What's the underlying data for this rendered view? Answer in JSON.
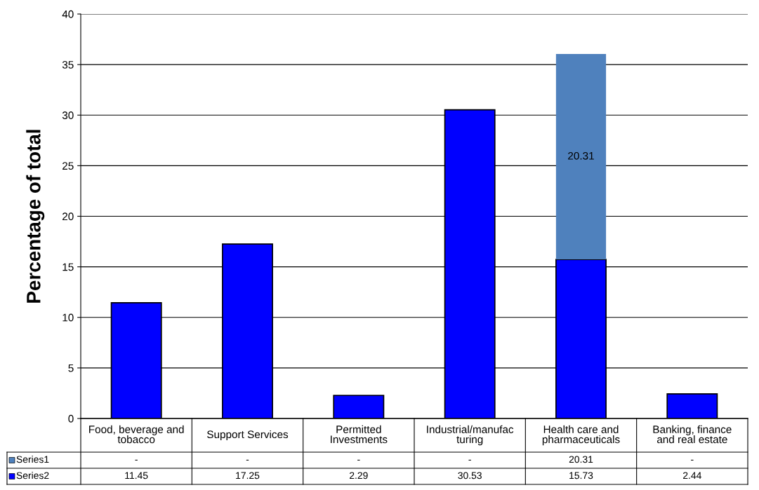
{
  "chart_data": {
    "type": "bar",
    "stacked": true,
    "ylabel": "Percentage of total",
    "categories": [
      "Food, beverage and tobacco",
      "Support Services",
      "Permitted Investments",
      "Industrial/manufacturing",
      "Health care and pharmaceuticals",
      "Banking, finance and real estate"
    ],
    "series": [
      {
        "name": "Series2",
        "color": "#0000ff",
        "values": [
          11.45,
          17.25,
          2.29,
          30.53,
          15.73,
          2.44
        ],
        "value_labels": [
          "11.45",
          "17.25",
          "2.29",
          "30.53",
          "15.73",
          "2.44"
        ]
      },
      {
        "name": "Series1",
        "color": "#4f81bd",
        "values": [
          null,
          null,
          null,
          null,
          20.31,
          null
        ],
        "value_labels": [
          "-",
          "-",
          "-",
          "-",
          "20.31",
          "-"
        ]
      }
    ],
    "data_labels": true,
    "ylim": [
      0,
      40
    ],
    "yticks": [
      0,
      5,
      10,
      15,
      20,
      25,
      30,
      35,
      40
    ],
    "grid": "y",
    "legend": "bottom"
  }
}
